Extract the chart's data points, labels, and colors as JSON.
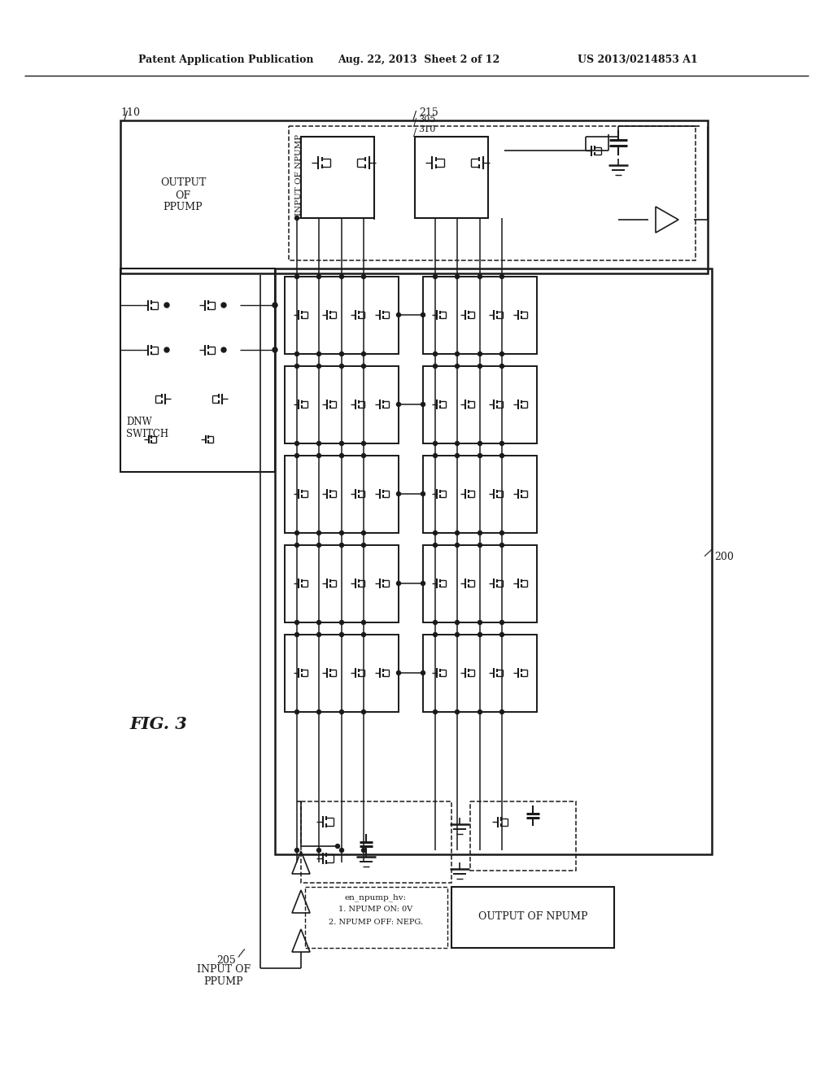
{
  "background": "#ffffff",
  "line_color": "#1a1a1a",
  "header_left": "Patent Application Publication",
  "header_center": "Aug. 22, 2013  Sheet 2 of 12",
  "header_right": "US 2013/0214853 A1",
  "fig_label": "FIG. 3",
  "labels": {
    "110": "110",
    "215": "215",
    "205": "205",
    "200": "200",
    "305": "305",
    "310": "310"
  },
  "texts": {
    "output_ppump": "OUTPUT\nOF\nPPUMP",
    "input_npump": "INPUT OF NPUMP",
    "input_ppump": "INPUT OF\nPPUMP",
    "output_npump": "OUTPUT OF NPUMP",
    "dnw_switch": "DNW\nSWITCH",
    "annotation_title": "en_npump_hv:",
    "annotation_1": "1. NPUMP ON: 0V",
    "annotation_2": "2. NPUMP OFF: NEPG."
  }
}
